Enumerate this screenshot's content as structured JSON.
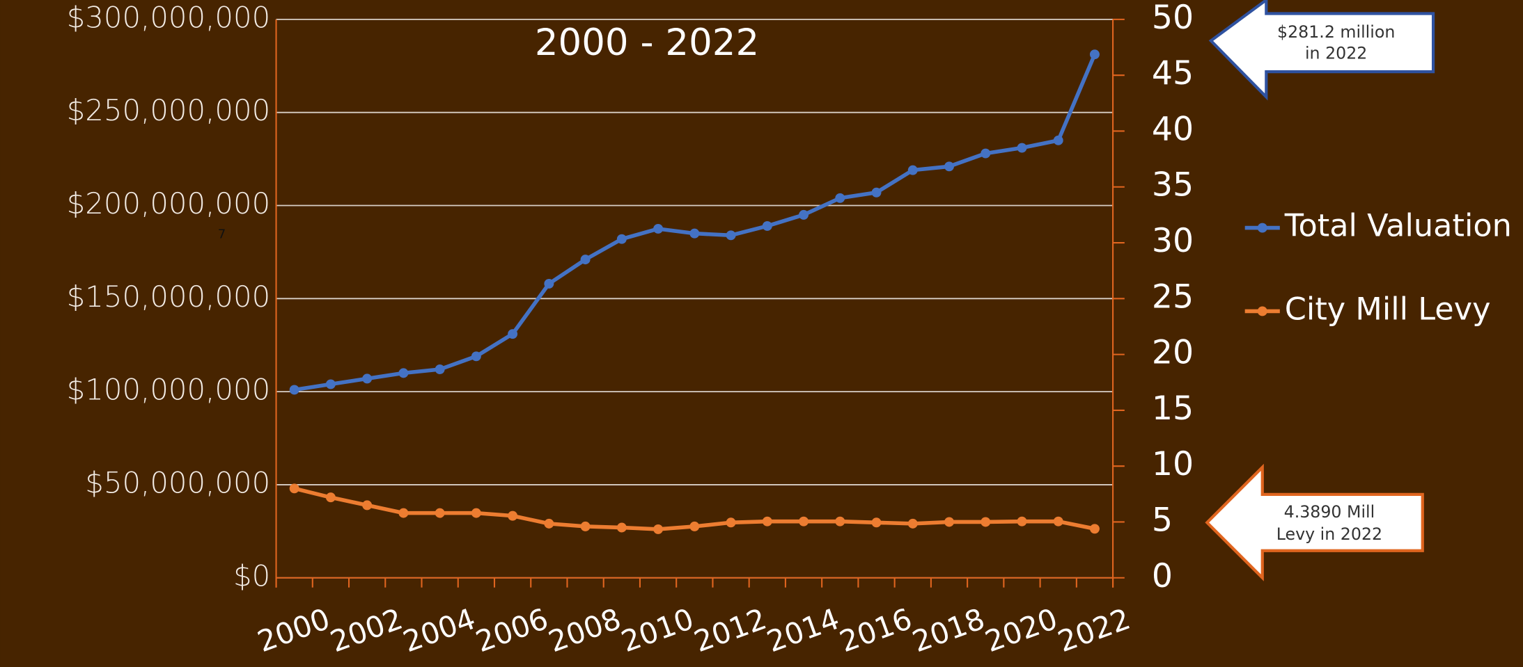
{
  "chart_data": {
    "type": "line",
    "title": "2000 - 2022",
    "categories": [
      "2000",
      null,
      "2002",
      null,
      "2004",
      null,
      "2006",
      null,
      "2008",
      null,
      "2010",
      null,
      "2012",
      null,
      "2014",
      null,
      "2016",
      null,
      "2018",
      null,
      "2020",
      null,
      "2022"
    ],
    "series": [
      {
        "name": "Total Valuation",
        "color": "#4472c4",
        "axis": "y",
        "values": [
          101000000,
          104000000,
          107000000,
          110000000,
          112000000,
          119000000,
          131000000,
          158000000,
          171000000,
          182000000,
          187500000,
          185000000,
          184000000,
          189000000,
          195000000,
          204000000,
          207000000,
          219000000,
          221000000,
          228000000,
          231000000,
          235000000,
          281200000
        ]
      },
      {
        "name": "City Mill Levy",
        "color": "#ed7d31",
        "axis": "y2",
        "values": [
          8.0,
          7.2,
          6.5,
          5.8,
          5.8,
          5.8,
          5.55,
          4.85,
          4.6,
          4.5,
          4.35,
          4.6,
          4.95,
          5.05,
          5.05,
          5.05,
          4.95,
          4.85,
          5.0,
          5.0,
          5.05,
          5.05,
          4.389
        ]
      }
    ],
    "ylim": [
      0,
      300000000
    ],
    "yticks": [
      {
        "value": 0,
        "label": "$0"
      },
      {
        "value": 50000000,
        "label": "$50,000,000"
      },
      {
        "value": 100000000,
        "label": "$100,000,000"
      },
      {
        "value": 150000000,
        "label": "$150,000,000"
      },
      {
        "value": 200000000,
        "label": "$200,000,000"
      },
      {
        "value": 250000000,
        "label": "$250,000,000"
      },
      {
        "value": 300000000,
        "label": "$300,000,000"
      }
    ],
    "y2lim": [
      0,
      50
    ],
    "y2ticks": [
      0,
      5,
      10,
      15,
      20,
      25,
      30,
      35,
      40,
      45,
      50
    ],
    "grid": true,
    "legend": "right",
    "annotations": [
      {
        "lines": [
          "$281.2 million",
          "in 2022"
        ]
      },
      {
        "lines": [
          "4.3890 Mill",
          "Levy in 2022"
        ]
      },
      {
        "lines": [
          "7"
        ]
      }
    ]
  }
}
